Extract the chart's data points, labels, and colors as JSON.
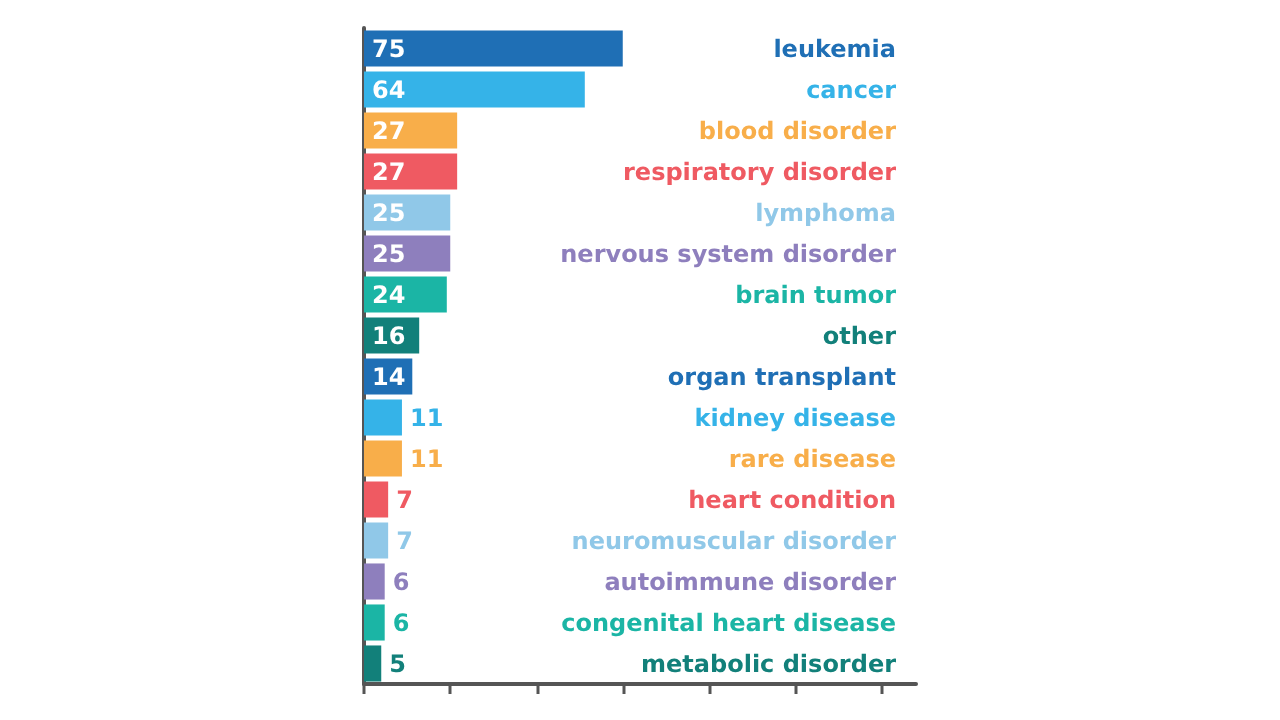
{
  "chart_data": {
    "type": "bar",
    "orientation": "horizontal",
    "categories": [
      "leukemia",
      "cancer",
      "blood disorder",
      "respiratory disorder",
      "lymphoma",
      "nervous system disorder",
      "brain tumor",
      "other",
      "organ transplant",
      "kidney disease",
      "rare disease",
      "heart condition",
      "neuromuscular disorder",
      "autoimmune disorder",
      "congenital heart disease",
      "metabolic disorder"
    ],
    "values": [
      75,
      64,
      27,
      27,
      25,
      25,
      24,
      16,
      14,
      11,
      11,
      7,
      7,
      6,
      6,
      5
    ],
    "colors": [
      "#1f6fb5",
      "#35b3e8",
      "#f8ae4a",
      "#ef5a62",
      "#90c8e8",
      "#8e7fbd",
      "#1bb5a5",
      "#12807a",
      "#1f6fb5",
      "#35b3e8",
      "#f8ae4a",
      "#ef5a62",
      "#90c8e8",
      "#8e7fbd",
      "#1bb5a5",
      "#12807a"
    ],
    "xlim": [
      0,
      160
    ],
    "xticks": [
      {
        "value": 0,
        "label": null
      },
      {
        "value": 25,
        "label": null
      },
      {
        "value": 50,
        "label": null
      },
      {
        "value": 75,
        "label": null
      },
      {
        "value": 100,
        "label": null
      },
      {
        "value": 125,
        "label": null
      },
      {
        "value": 150,
        "label": null
      }
    ],
    "tick_labels": "y",
    "data_labels": true
  }
}
